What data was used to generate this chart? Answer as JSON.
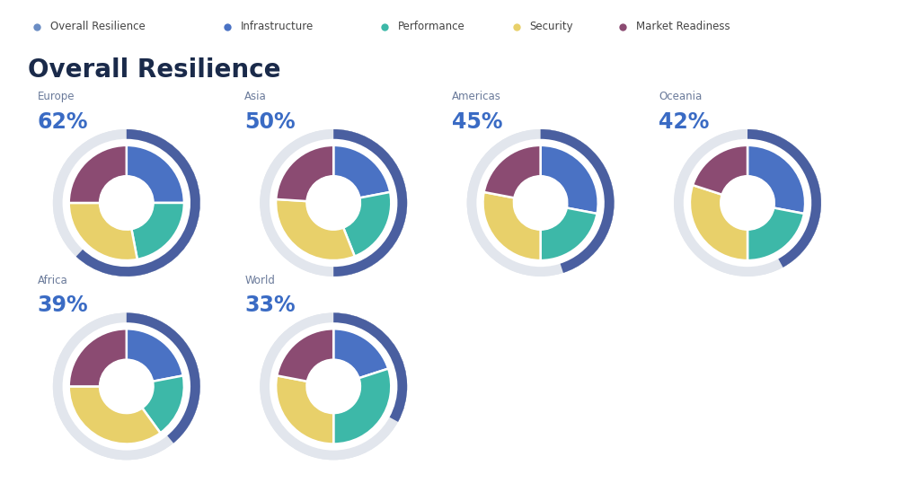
{
  "title": "Overall Resilience",
  "legend_items": [
    {
      "label": "Overall Resilience",
      "color": "#6B8DC4"
    },
    {
      "label": "Infrastructure",
      "color": "#4A72C4"
    },
    {
      "label": "Performance",
      "color": "#3DB8A8"
    },
    {
      "label": "Security",
      "color": "#E8D06A"
    },
    {
      "label": "Market Readiness",
      "color": "#8B4B72"
    }
  ],
  "charts": [
    {
      "region": "Europe",
      "percentage": "62%",
      "overall": 62,
      "slices": [
        25,
        22,
        28,
        25
      ],
      "row": 0,
      "col": 0
    },
    {
      "region": "Asia",
      "percentage": "50%",
      "overall": 50,
      "slices": [
        22,
        22,
        32,
        24
      ],
      "row": 0,
      "col": 1
    },
    {
      "region": "Americas",
      "percentage": "45%",
      "overall": 45,
      "slices": [
        28,
        22,
        28,
        22
      ],
      "row": 0,
      "col": 2
    },
    {
      "region": "Oceania",
      "percentage": "42%",
      "overall": 42,
      "slices": [
        28,
        22,
        30,
        20
      ],
      "row": 0,
      "col": 3
    },
    {
      "region": "Africa",
      "percentage": "39%",
      "overall": 39,
      "slices": [
        22,
        18,
        35,
        25
      ],
      "row": 1,
      "col": 0
    },
    {
      "region": "World",
      "percentage": "33%",
      "overall": 33,
      "slices": [
        20,
        30,
        28,
        22
      ],
      "row": 1,
      "col": 1
    }
  ],
  "slice_colors": [
    "#4A72C4",
    "#3DB8A8",
    "#E8D06A",
    "#8B4B72"
  ],
  "ring_color": "#4A5FA0",
  "ring_bg_color": "#E2E6ED",
  "background_color": "#FFFFFF",
  "title_color": "#1a2a4a",
  "region_label_color": "#6a7a9a",
  "pct_color": "#3A6BC4",
  "legend_label_color": "#444444"
}
